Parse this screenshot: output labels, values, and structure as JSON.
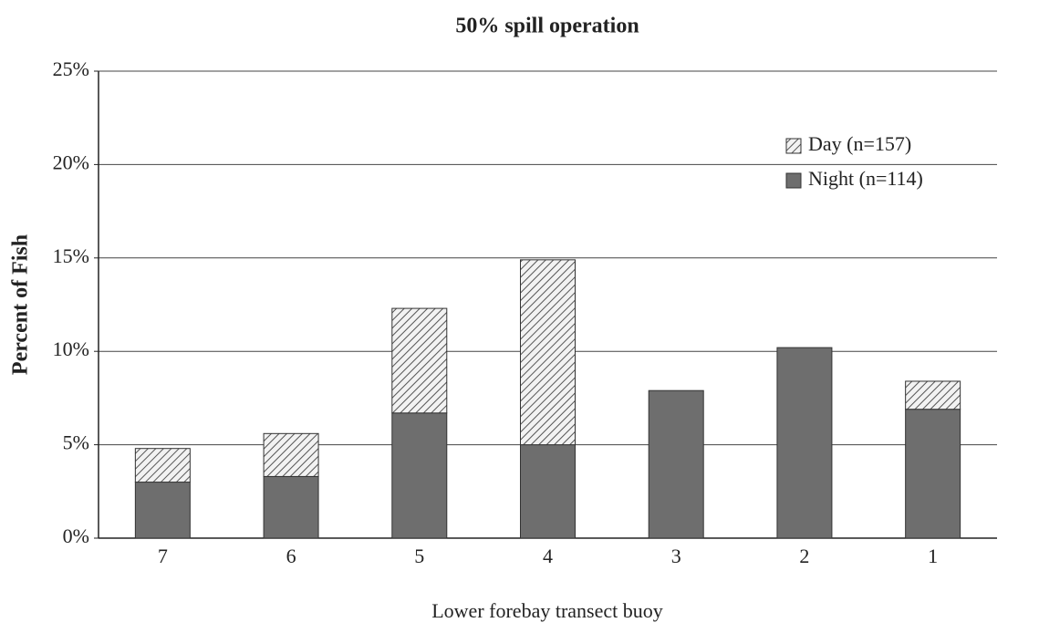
{
  "chart_data": {
    "type": "stacked-bar",
    "title": "50% spill operation",
    "x_label": "Lower forebay transect buoy",
    "y_label": "Percent of Fish",
    "categories": [
      "7",
      "6",
      "5",
      "4",
      "3",
      "2",
      "1"
    ],
    "series": [
      {
        "name": "Night (n=114)",
        "color": "#6e6e6e",
        "values": [
          3.0,
          3.3,
          6.7,
          5.0,
          7.9,
          10.2,
          6.9
        ]
      },
      {
        "name": "Day (n=157)",
        "color": "hatch",
        "values": [
          1.8,
          2.3,
          5.6,
          9.9,
          0,
          0,
          1.5
        ]
      }
    ],
    "ylim": [
      0,
      25
    ],
    "yticks": [
      {
        "value": 0,
        "label": "0%"
      },
      {
        "value": 5,
        "label": "5%"
      },
      {
        "value": 10,
        "label": "10%"
      },
      {
        "value": 15,
        "label": "15%"
      },
      {
        "value": 20,
        "label": "20%"
      },
      {
        "value": 25,
        "label": "25%"
      }
    ],
    "grid": true,
    "legend": "top-right"
  }
}
